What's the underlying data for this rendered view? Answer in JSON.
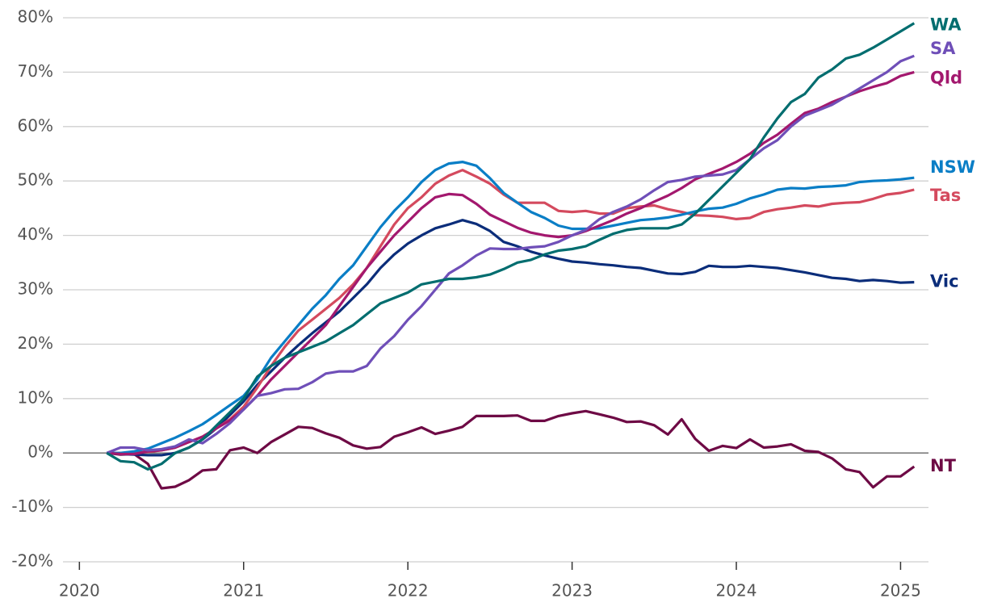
{
  "chart_data": {
    "type": "line",
    "x": [
      2020.167,
      2020.25,
      2020.333,
      2020.417,
      2020.5,
      2020.583,
      2020.667,
      2020.75,
      2020.833,
      2020.917,
      2021,
      2021.083,
      2021.167,
      2021.25,
      2021.333,
      2021.417,
      2021.5,
      2021.583,
      2021.667,
      2021.75,
      2021.833,
      2021.917,
      2022,
      2022.083,
      2022.167,
      2022.25,
      2022.333,
      2022.417,
      2022.5,
      2022.583,
      2022.667,
      2022.75,
      2022.833,
      2022.917,
      2023,
      2023.083,
      2023.167,
      2023.25,
      2023.333,
      2023.417,
      2023.5,
      2023.583,
      2023.667,
      2023.75,
      2023.833,
      2023.917,
      2024,
      2024.083,
      2024.167,
      2024.25,
      2024.333,
      2024.417,
      2024.5,
      2024.583,
      2024.667,
      2024.75,
      2024.833,
      2024.917,
      2025,
      2025.083
    ],
    "series": [
      {
        "name": "NT",
        "color": "#6e0a45",
        "values": [
          0,
          -0.3,
          -0.2,
          -2,
          -6.5,
          -6.2,
          -5,
          -3.2,
          -3,
          0.5,
          1,
          0,
          2,
          3.4,
          4.8,
          4.6,
          3.6,
          2.8,
          1.4,
          0.8,
          1.1,
          3,
          3.8,
          4.7,
          3.5,
          4.1,
          4.8,
          6.8,
          6.8,
          6.8,
          6.9,
          5.9,
          5.9,
          6.8,
          7.3,
          7.7,
          7.1,
          6.5,
          5.7,
          5.8,
          5.1,
          3.4,
          6.2,
          2.6,
          0.4,
          1.3,
          0.9,
          2.5,
          1,
          1.2,
          1.6,
          0.4,
          0.2,
          -1,
          -3,
          -3.5,
          -6.3,
          -4.3,
          -4.3,
          -2.5
        ]
      },
      {
        "name": "Vic",
        "color": "#0b2d7a",
        "values": [
          0,
          -0.2,
          -0.3,
          -0.4,
          -0.4,
          0,
          1,
          2.5,
          4.5,
          7,
          9.5,
          12.5,
          15,
          17.5,
          19.8,
          22,
          24,
          26,
          28.5,
          31,
          34,
          36.5,
          38.5,
          40,
          41.3,
          42,
          42.8,
          42.1,
          40.8,
          38.8,
          38,
          37,
          36.3,
          35.7,
          35.2,
          35,
          34.7,
          34.5,
          34.2,
          34,
          33.5,
          33,
          32.9,
          33.3,
          34.4,
          34.2,
          34.2,
          34.4,
          34.2,
          34,
          33.6,
          33.2,
          32.7,
          32.2,
          32,
          31.6,
          31.8,
          31.6,
          31.3,
          31.4
        ]
      },
      {
        "name": "Tas",
        "color": "#d44a5e",
        "values": [
          0,
          0,
          0,
          0.2,
          0.5,
          1,
          2,
          3,
          4.5,
          6.2,
          8.5,
          12,
          16,
          19.5,
          22.5,
          24.5,
          26.5,
          28.5,
          31,
          34,
          38,
          42,
          45,
          47,
          49.5,
          51,
          52,
          50.8,
          49.5,
          47.5,
          46,
          46,
          46,
          44.5,
          44.3,
          44.5,
          44,
          44,
          45,
          45.3,
          45.5,
          44.8,
          44.3,
          43.7,
          43.6,
          43.4,
          43,
          43.2,
          44.3,
          44.8,
          45.1,
          45.5,
          45.3,
          45.8,
          46,
          46.1,
          46.7,
          47.5,
          47.8,
          48.4
        ]
      },
      {
        "name": "NSW",
        "color": "#0a7ec6",
        "values": [
          0,
          0,
          0.3,
          0.8,
          1.8,
          2.8,
          4,
          5.3,
          7,
          8.8,
          10.5,
          13.5,
          17.5,
          20.5,
          23.5,
          26.5,
          29,
          32,
          34.5,
          38,
          41.5,
          44.5,
          47,
          49.8,
          52,
          53.2,
          53.5,
          52.8,
          50.5,
          47.8,
          46,
          44.3,
          43.2,
          41.8,
          41.2,
          41.2,
          41.3,
          41.8,
          42.3,
          42.8,
          43,
          43.3,
          43.8,
          44.4,
          44.9,
          45.1,
          45.8,
          46.8,
          47.5,
          48.4,
          48.7,
          48.6,
          48.9,
          49,
          49.2,
          49.8,
          50,
          50.1,
          50.3,
          50.6
        ]
      },
      {
        "name": "Qld",
        "color": "#a3186e",
        "values": [
          0,
          -0.2,
          -0.2,
          0.3,
          0.5,
          1,
          2,
          3,
          4.5,
          6,
          8,
          10.5,
          13.5,
          16,
          18.5,
          21,
          23.5,
          27,
          30.5,
          34,
          37,
          40,
          42.5,
          45,
          47,
          47.6,
          47.4,
          45.8,
          43.8,
          42.6,
          41.4,
          40.5,
          40,
          39.7,
          40,
          40.8,
          41.8,
          42.8,
          44,
          45,
          46.2,
          47.3,
          48.7,
          50.3,
          51.3,
          52.3,
          53.5,
          55,
          57,
          58.5,
          60.5,
          62.5,
          63.3,
          64.5,
          65.5,
          66.5,
          67.3,
          68,
          69.3,
          70
        ]
      },
      {
        "name": "SA",
        "color": "#6f4fb8",
        "values": [
          0,
          1,
          1,
          0.5,
          0.7,
          1.2,
          2.5,
          1.8,
          3.5,
          5.5,
          8,
          10.5,
          11,
          11.7,
          11.8,
          13,
          14.6,
          15,
          15,
          16,
          19.2,
          21.5,
          24.5,
          27,
          30,
          33,
          34.5,
          36.3,
          37.6,
          37.5,
          37.5,
          37.8,
          38,
          38.8,
          40,
          41,
          43,
          44.3,
          45.3,
          46.6,
          48.3,
          49.8,
          50.2,
          50.8,
          51,
          51.2,
          52,
          54,
          56,
          57.5,
          60,
          62,
          63,
          64,
          65.5,
          67,
          68.5,
          70,
          72,
          73
        ]
      },
      {
        "name": "WA",
        "color": "#006d6f",
        "values": [
          0,
          -1.5,
          -1.7,
          -3,
          -2,
          0,
          1,
          2.5,
          5,
          7.5,
          10,
          14,
          16,
          17.5,
          18.5,
          19.5,
          20.5,
          22,
          23.5,
          25.5,
          27.5,
          28.5,
          29.5,
          31,
          31.5,
          32,
          32,
          32.3,
          32.8,
          33.8,
          35,
          35.5,
          36.5,
          37.2,
          37.5,
          38,
          39.2,
          40.3,
          41,
          41.3,
          41.3,
          41.3,
          42,
          44,
          46.5,
          49,
          51.5,
          54,
          58,
          61.5,
          64.5,
          66,
          69,
          70.5,
          72.5,
          73.2,
          74.5,
          76,
          77.5,
          79
        ]
      }
    ],
    "xlim": [
      2019.9,
      2025.17
    ],
    "xticks": [
      2020,
      2021,
      2022,
      2023,
      2024,
      2025
    ],
    "ylim": [
      -20,
      80
    ],
    "yticks": [
      {
        "value": -20,
        "label": "-20%"
      },
      {
        "value": -10,
        "label": "-10%"
      },
      {
        "value": 0,
        "label": "0%"
      },
      {
        "value": 10,
        "label": "10%"
      },
      {
        "value": 20,
        "label": "20%"
      },
      {
        "value": 30,
        "label": "30%"
      },
      {
        "value": 40,
        "label": "40%"
      },
      {
        "value": 50,
        "label": "50%"
      },
      {
        "value": 60,
        "label": "60%"
      },
      {
        "value": 70,
        "label": "70%"
      },
      {
        "value": 80,
        "label": "80%"
      }
    ],
    "grid": true
  }
}
